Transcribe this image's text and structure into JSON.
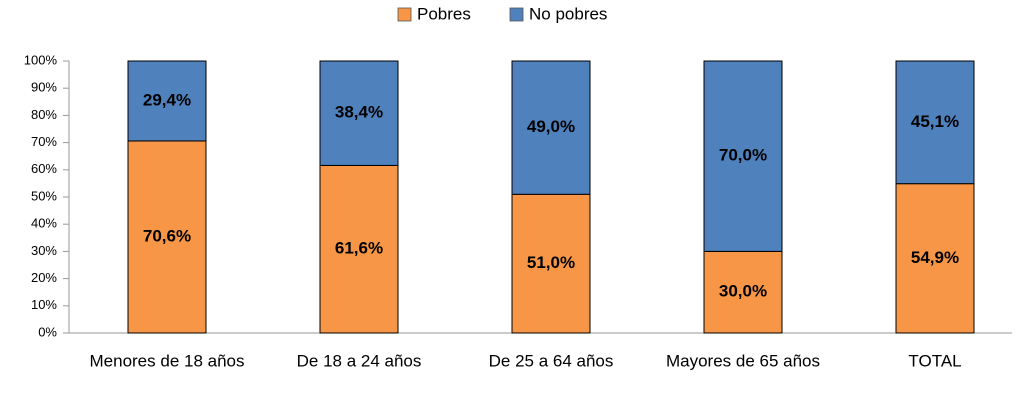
{
  "chart_data": {
    "type": "stacked_bar",
    "categories": [
      "Menores de 18 años",
      "De 18 a 24 años",
      "De 25 a 64 años",
      "Mayores de 65 años",
      "TOTAL"
    ],
    "series": [
      {
        "name": "Pobres",
        "color": "#f79646",
        "values": [
          70.6,
          61.6,
          51.0,
          30.0,
          54.9
        ],
        "value_labels": [
          "70,6%",
          "61,6%",
          "51,0%",
          "30,0%",
          "54,9%"
        ]
      },
      {
        "name": "No pobres",
        "color": "#4f81bd",
        "values": [
          29.4,
          38.4,
          49.0,
          70.0,
          45.1
        ],
        "value_labels": [
          "29,4%",
          "38,4%",
          "49,0%",
          "70,0%",
          "45,1%"
        ]
      }
    ],
    "ylim": [
      0,
      100
    ],
    "yticks": [
      {
        "value": 0,
        "label": "0%"
      },
      {
        "value": 10,
        "label": "10%"
      },
      {
        "value": 20,
        "label": "20%"
      },
      {
        "value": 30,
        "label": "30%"
      },
      {
        "value": 40,
        "label": "40%"
      },
      {
        "value": 50,
        "label": "50%"
      },
      {
        "value": 60,
        "label": "60%"
      },
      {
        "value": 70,
        "label": "70%"
      },
      {
        "value": 80,
        "label": "80%"
      },
      {
        "value": 90,
        "label": "90%"
      },
      {
        "value": 100,
        "label": "100%"
      }
    ],
    "legend": "top"
  }
}
